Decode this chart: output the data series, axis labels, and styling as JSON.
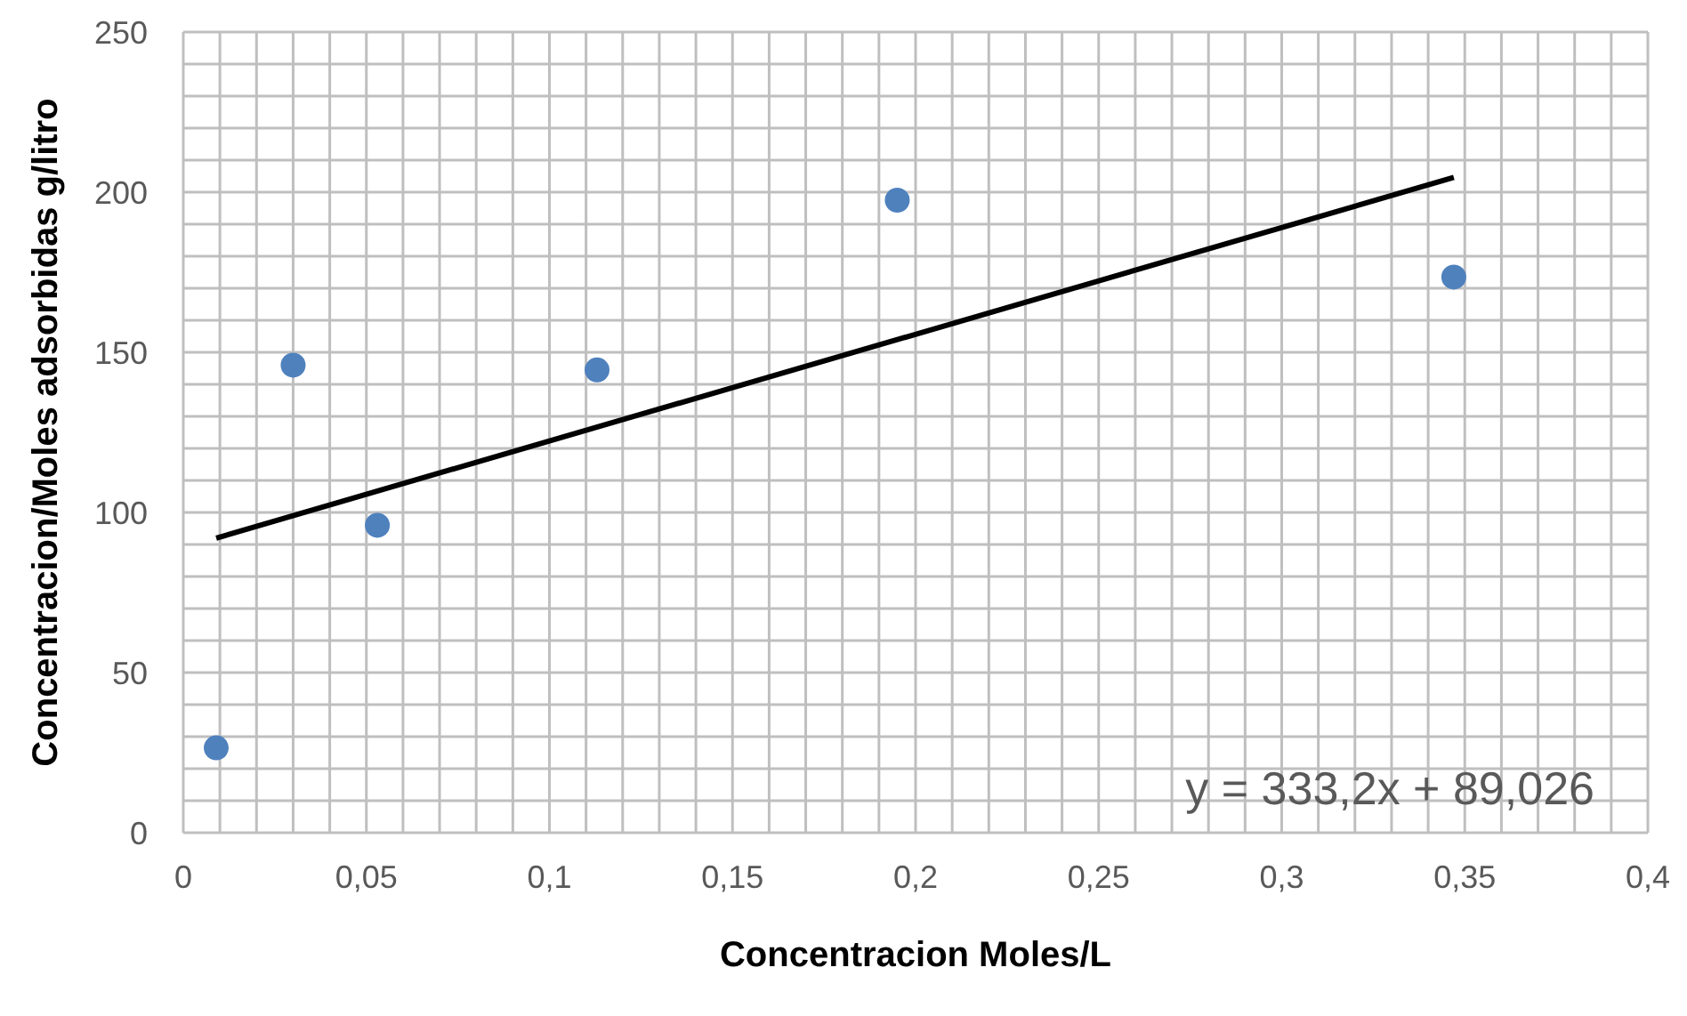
{
  "chart_data": {
    "type": "scatter",
    "xlabel": "Concentracion Moles/L",
    "ylabel": "Concentracion/Moles adsorbidas g/litro",
    "series": [
      {
        "color": "#4f81bd",
        "marker": "circle",
        "x": [
          0.009,
          0.03,
          0.053,
          0.113,
          0.195,
          0.347
        ],
        "values": [
          26.5,
          146,
          96,
          144.5,
          197.5,
          173.5
        ]
      },
      {
        "type": "line",
        "marker": "none",
        "color": "#000000",
        "x": [
          0.009,
          0.347
        ],
        "values": [
          92,
          204.6
        ]
      }
    ],
    "xlim": [
      0,
      0.4
    ],
    "xticks": [
      0,
      {
        "value": 0.01,
        "label": null
      },
      {
        "value": 0.02,
        "label": null
      },
      {
        "value": 0.03,
        "label": null
      },
      {
        "value": 0.04,
        "label": null
      },
      {
        "value": 0.05,
        "label": "0,05"
      },
      {
        "value": 0.06,
        "label": null
      },
      {
        "value": 0.07,
        "label": null
      },
      {
        "value": 0.08,
        "label": null
      },
      {
        "value": 0.09,
        "label": null
      },
      {
        "value": 0.1,
        "label": "0,1"
      },
      {
        "value": 0.11,
        "label": null
      },
      {
        "value": 0.12,
        "label": null
      },
      {
        "value": 0.13,
        "label": null
      },
      {
        "value": 0.14,
        "label": null
      },
      {
        "value": 0.15,
        "label": "0,15"
      },
      {
        "value": 0.16,
        "label": null
      },
      {
        "value": 0.17,
        "label": null
      },
      {
        "value": 0.18,
        "label": null
      },
      {
        "value": 0.19,
        "label": null
      },
      {
        "value": 0.2,
        "label": "0,2"
      },
      {
        "value": 0.21,
        "label": null
      },
      {
        "value": 0.22,
        "label": null
      },
      {
        "value": 0.23,
        "label": null
      },
      {
        "value": 0.24,
        "label": null
      },
      {
        "value": 0.25,
        "label": "0,25"
      },
      {
        "value": 0.26,
        "label": null
      },
      {
        "value": 0.27,
        "label": null
      },
      {
        "value": 0.28,
        "label": null
      },
      {
        "value": 0.29,
        "label": null
      },
      {
        "value": 0.3,
        "label": "0,3"
      },
      {
        "value": 0.31,
        "label": null
      },
      {
        "value": 0.32,
        "label": null
      },
      {
        "value": 0.33,
        "label": null
      },
      {
        "value": 0.34,
        "label": null
      },
      {
        "value": 0.35,
        "label": "0,35"
      },
      {
        "value": 0.36,
        "label": null
      },
      {
        "value": 0.37,
        "label": null
      },
      {
        "value": 0.38,
        "label": null
      },
      {
        "value": 0.39,
        "label": null
      },
      {
        "value": 0.4,
        "label": "0,4"
      }
    ],
    "ylim": [
      0,
      250
    ],
    "yticks": [
      0,
      {
        "value": 10,
        "label": null
      },
      {
        "value": 20,
        "label": null
      },
      {
        "value": 30,
        "label": null
      },
      {
        "value": 40,
        "label": null
      },
      50,
      {
        "value": 60,
        "label": null
      },
      {
        "value": 70,
        "label": null
      },
      {
        "value": 80,
        "label": null
      },
      {
        "value": 90,
        "label": null
      },
      100,
      {
        "value": 110,
        "label": null
      },
      {
        "value": 120,
        "label": null
      },
      {
        "value": 130,
        "label": null
      },
      {
        "value": 140,
        "label": null
      },
      150,
      {
        "value": 160,
        "label": null
      },
      {
        "value": 170,
        "label": null
      },
      {
        "value": 180,
        "label": null
      },
      {
        "value": 190,
        "label": null
      },
      200,
      {
        "value": 210,
        "label": null
      },
      {
        "value": 220,
        "label": null
      },
      {
        "value": 230,
        "label": null
      },
      {
        "value": 240,
        "label": null
      },
      250
    ],
    "grid": true,
    "annotations": [
      "y = 333,2x + 89,026"
    ]
  }
}
